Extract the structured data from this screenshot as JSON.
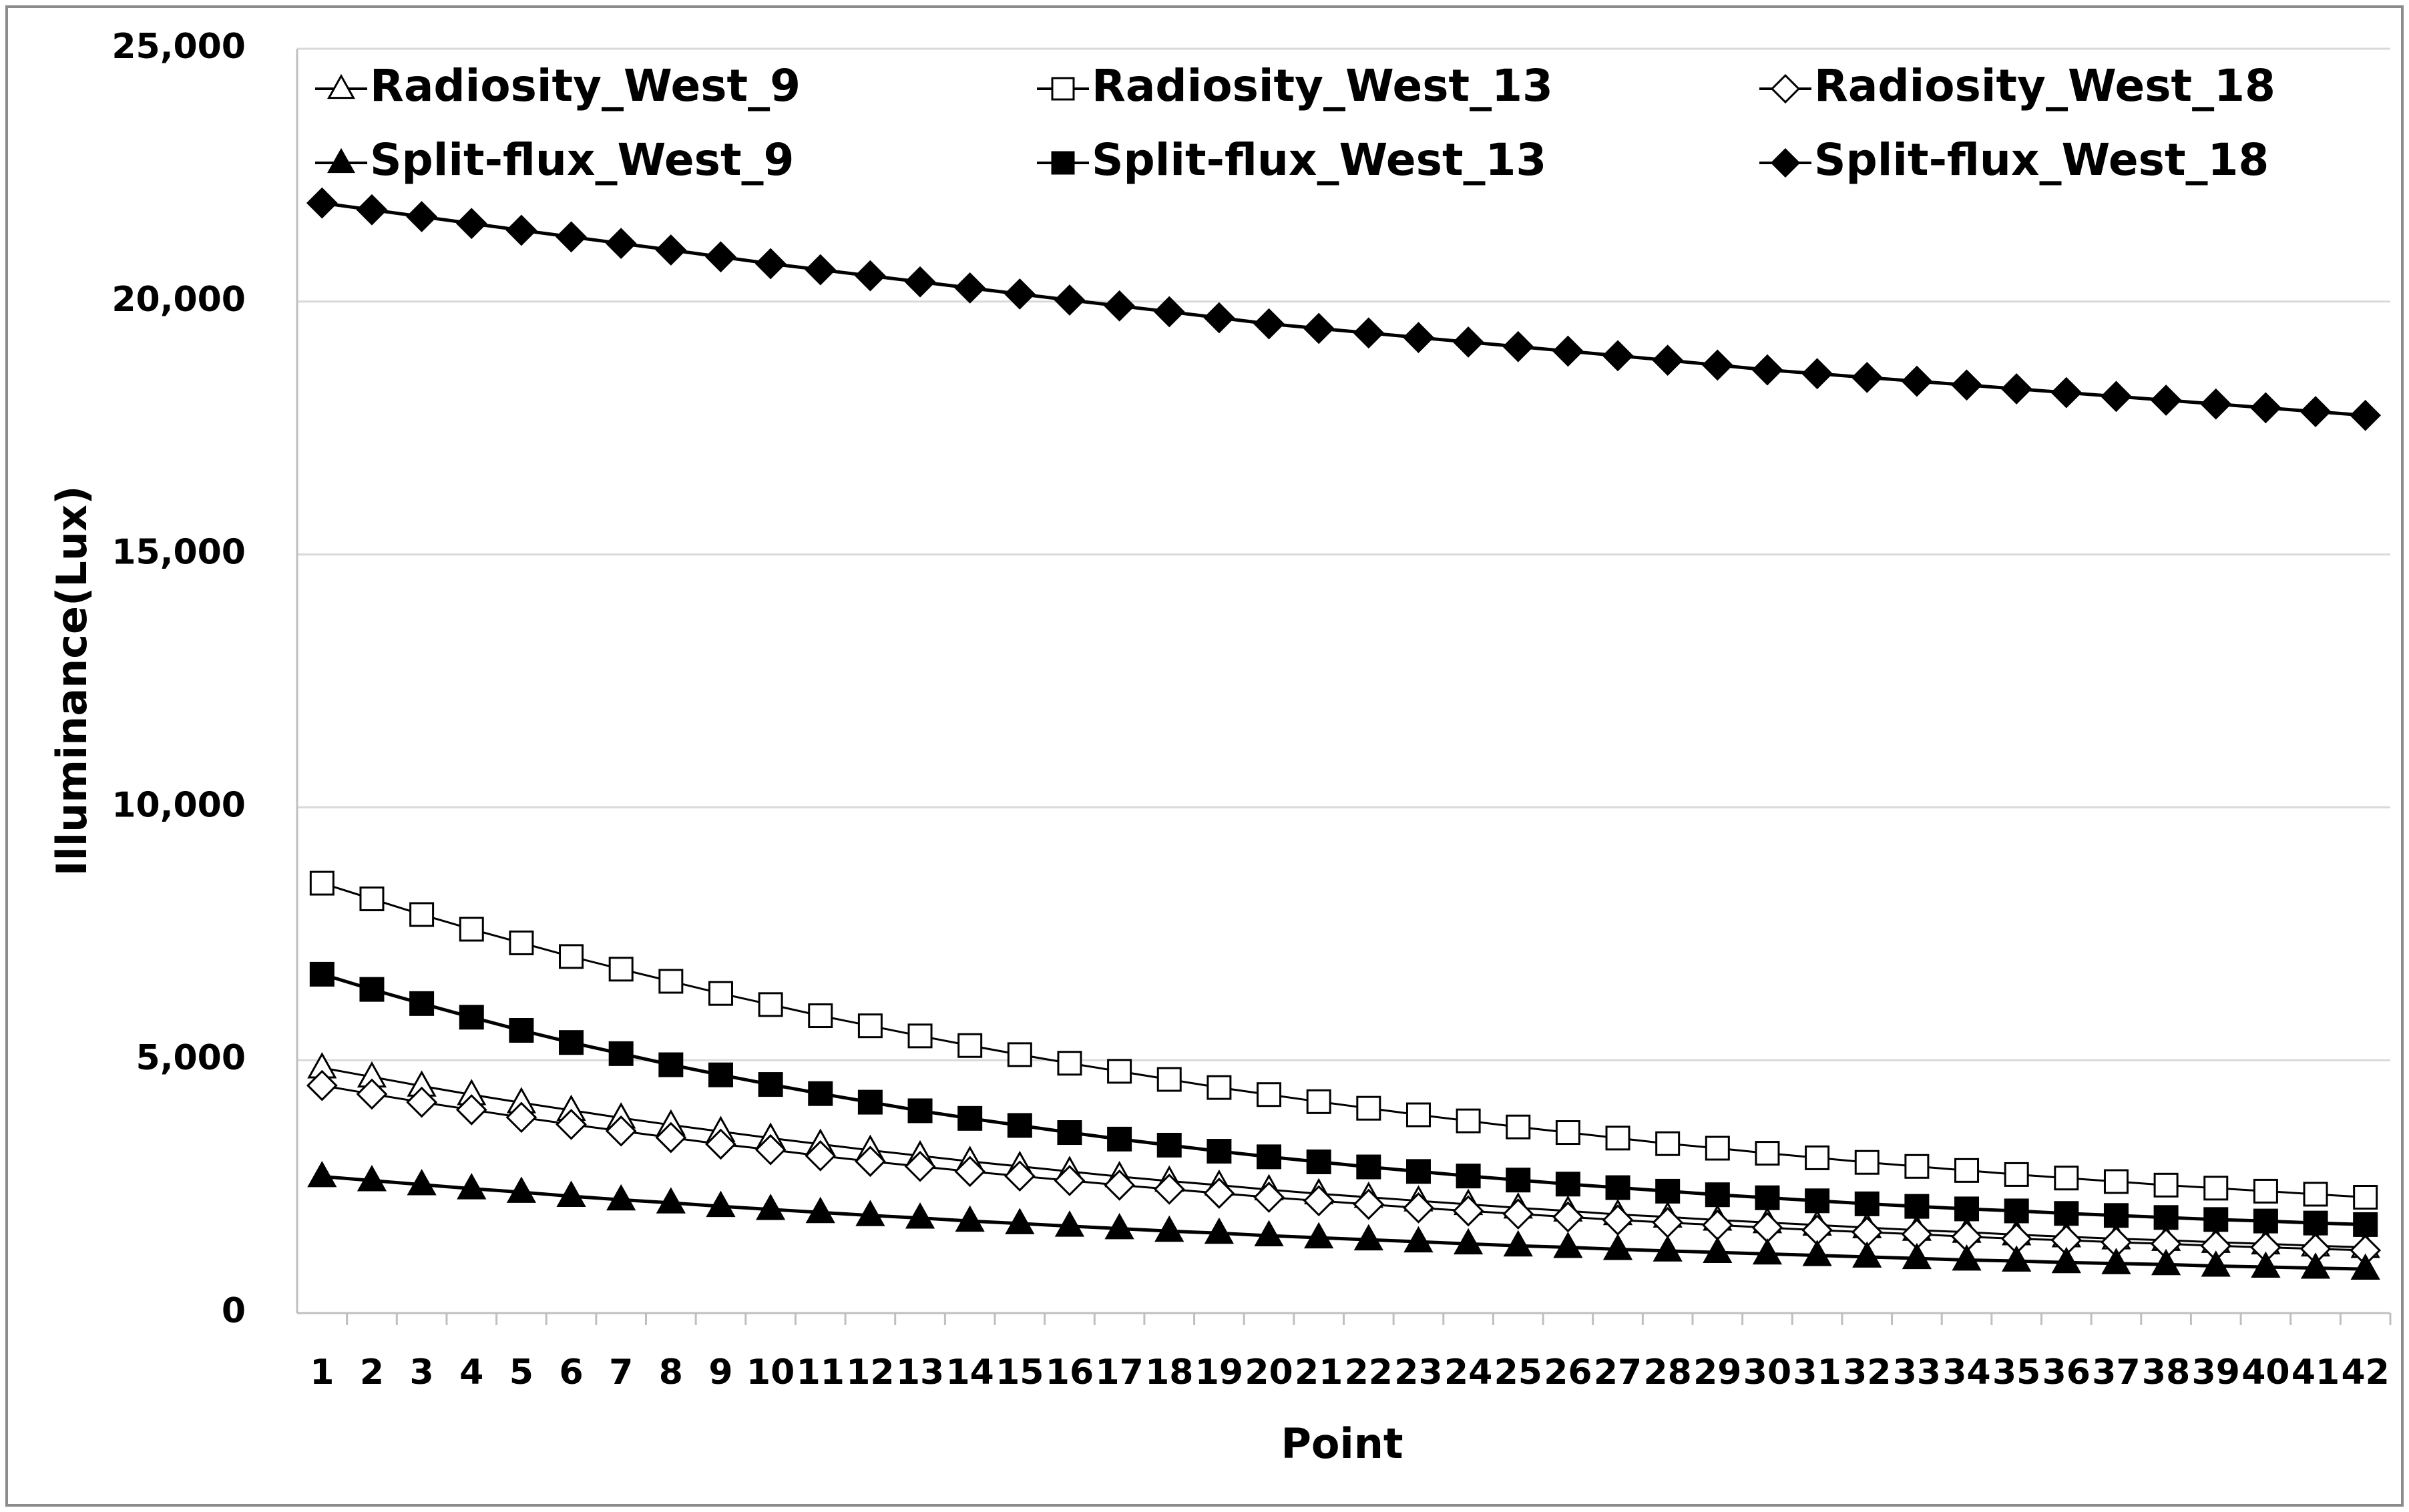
{
  "chart_data": {
    "type": "line",
    "x_label": "Point",
    "y_label": "Illuminance(Lux)",
    "categories": [
      "1",
      "2",
      "3",
      "4",
      "5",
      "6",
      "7",
      "8",
      "9",
      "10",
      "11",
      "12",
      "13",
      "14",
      "15",
      "16",
      "17",
      "18",
      "19",
      "20",
      "21",
      "22",
      "23",
      "24",
      "25",
      "26",
      "27",
      "28",
      "29",
      "30",
      "31",
      "32",
      "33",
      "34",
      "35",
      "36",
      "37",
      "38",
      "39",
      "40",
      "41",
      "42"
    ],
    "ylim": [
      0,
      25000
    ],
    "yticks": [
      0,
      {
        "value": 5000,
        "label": "5,000"
      },
      {
        "value": 10000,
        "label": "10,000"
      },
      {
        "value": 15000,
        "label": "15,000"
      },
      {
        "value": 20000,
        "label": "20,000"
      },
      {
        "value": 25000,
        "label": "25,000"
      }
    ],
    "grid": true,
    "legend": "top",
    "series": [
      {
        "name": "Radiosity_West_9",
        "color": "#000000",
        "marker": "triangle",
        "filled": false,
        "values": [
          4850,
          4670,
          4490,
          4320,
          4160,
          4010,
          3860,
          3720,
          3590,
          3460,
          3340,
          3220,
          3110,
          3000,
          2900,
          2800,
          2700,
          2610,
          2530,
          2440,
          2360,
          2290,
          2220,
          2150,
          2080,
          2020,
          1950,
          1900,
          1840,
          1790,
          1740,
          1690,
          1640,
          1600,
          1550,
          1510,
          1470,
          1440,
          1400,
          1370,
          1330,
          1300
        ]
      },
      {
        "name": "Radiosity_West_13",
        "color": "#000000",
        "marker": "square",
        "filled": false,
        "values": [
          8500,
          8190,
          7880,
          7590,
          7320,
          7050,
          6800,
          6560,
          6320,
          6100,
          5880,
          5680,
          5480,
          5290,
          5110,
          4940,
          4780,
          4620,
          4460,
          4320,
          4180,
          4050,
          3920,
          3800,
          3680,
          3570,
          3460,
          3350,
          3260,
          3160,
          3070,
          2980,
          2900,
          2820,
          2740,
          2670,
          2600,
          2530,
          2470,
          2410,
          2350,
          2290
        ]
      },
      {
        "name": "Radiosity_West_18",
        "color": "#000000",
        "marker": "diamond",
        "filled": false,
        "values": [
          4500,
          4330,
          4170,
          4020,
          3870,
          3730,
          3600,
          3470,
          3340,
          3230,
          3110,
          3000,
          2900,
          2800,
          2710,
          2620,
          2530,
          2450,
          2370,
          2290,
          2220,
          2150,
          2080,
          2020,
          1960,
          1900,
          1840,
          1790,
          1740,
          1690,
          1640,
          1600,
          1560,
          1510,
          1470,
          1440,
          1400,
          1370,
          1330,
          1300,
          1270,
          1240
        ]
      },
      {
        "name": "Split-flux_West_9",
        "color": "#000000",
        "marker": "triangle",
        "filled": true,
        "values": [
          2700,
          2620,
          2540,
          2460,
          2390,
          2310,
          2240,
          2180,
          2110,
          2050,
          1990,
          1930,
          1880,
          1820,
          1770,
          1720,
          1670,
          1620,
          1580,
          1530,
          1490,
          1450,
          1410,
          1370,
          1330,
          1300,
          1260,
          1230,
          1200,
          1170,
          1140,
          1110,
          1080,
          1050,
          1030,
          1000,
          980,
          960,
          930,
          910,
          890,
          870
        ]
      },
      {
        "name": "Split-flux_West_13",
        "color": "#000000",
        "marker": "square",
        "filled": true,
        "values": [
          6700,
          6400,
          6120,
          5850,
          5590,
          5350,
          5130,
          4910,
          4710,
          4520,
          4340,
          4170,
          4000,
          3850,
          3710,
          3570,
          3440,
          3320,
          3200,
          3090,
          2990,
          2890,
          2800,
          2710,
          2630,
          2550,
          2480,
          2410,
          2340,
          2280,
          2220,
          2160,
          2110,
          2060,
          2020,
          1970,
          1930,
          1890,
          1850,
          1820,
          1780,
          1750
        ]
      },
      {
        "name": "Split-flux_West_18",
        "color": "#000000",
        "marker": "diamond",
        "filled": true,
        "values": [
          21950,
          21815,
          21680,
          21545,
          21410,
          21280,
          21150,
          21020,
          20885,
          20750,
          20630,
          20510,
          20390,
          20270,
          20150,
          20030,
          19915,
          19800,
          19680,
          19560,
          19470,
          19380,
          19290,
          19200,
          19110,
          19020,
          18930,
          18840,
          18745,
          18650,
          18575,
          18500,
          18425,
          18350,
          18275,
          18200,
          18125,
          18050,
          17975,
          17900,
          17825,
          17750
        ]
      }
    ]
  }
}
